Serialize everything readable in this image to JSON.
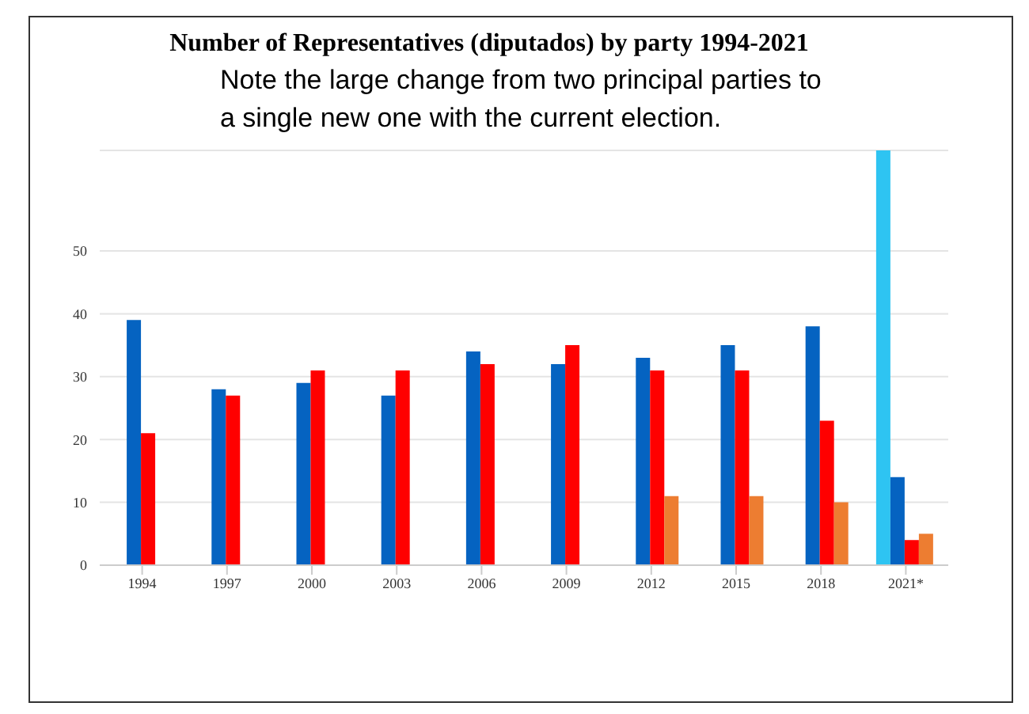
{
  "chart_data": {
    "type": "bar",
    "title": "Number of Representatives (diputados) by party 1994-2021",
    "subtitle": "Note the large change from two principal parties to a single new one with the current election.",
    "categories": [
      "1994",
      "1997",
      "2000",
      "2003",
      "2006",
      "2009",
      "2012",
      "2015",
      "2018",
      "2021*"
    ],
    "series": [
      {
        "color": "#2ec4f2",
        "values": [
          null,
          null,
          null,
          null,
          null,
          null,
          null,
          null,
          null,
          66
        ]
      },
      {
        "color": "#0563c1",
        "values": [
          39,
          28,
          29,
          27,
          34,
          32,
          33,
          35,
          38,
          14
        ]
      },
      {
        "color": "#ff0000",
        "values": [
          21,
          27,
          31,
          31,
          32,
          35,
          31,
          31,
          23,
          4
        ]
      },
      {
        "color": "#ed7d31",
        "values": [
          null,
          null,
          null,
          null,
          null,
          null,
          11,
          11,
          10,
          5
        ]
      }
    ],
    "ylim": [
      0,
      66
    ],
    "yticks": [
      0,
      10,
      20,
      30,
      40,
      50
    ],
    "grid": "y",
    "legend": false
  }
}
